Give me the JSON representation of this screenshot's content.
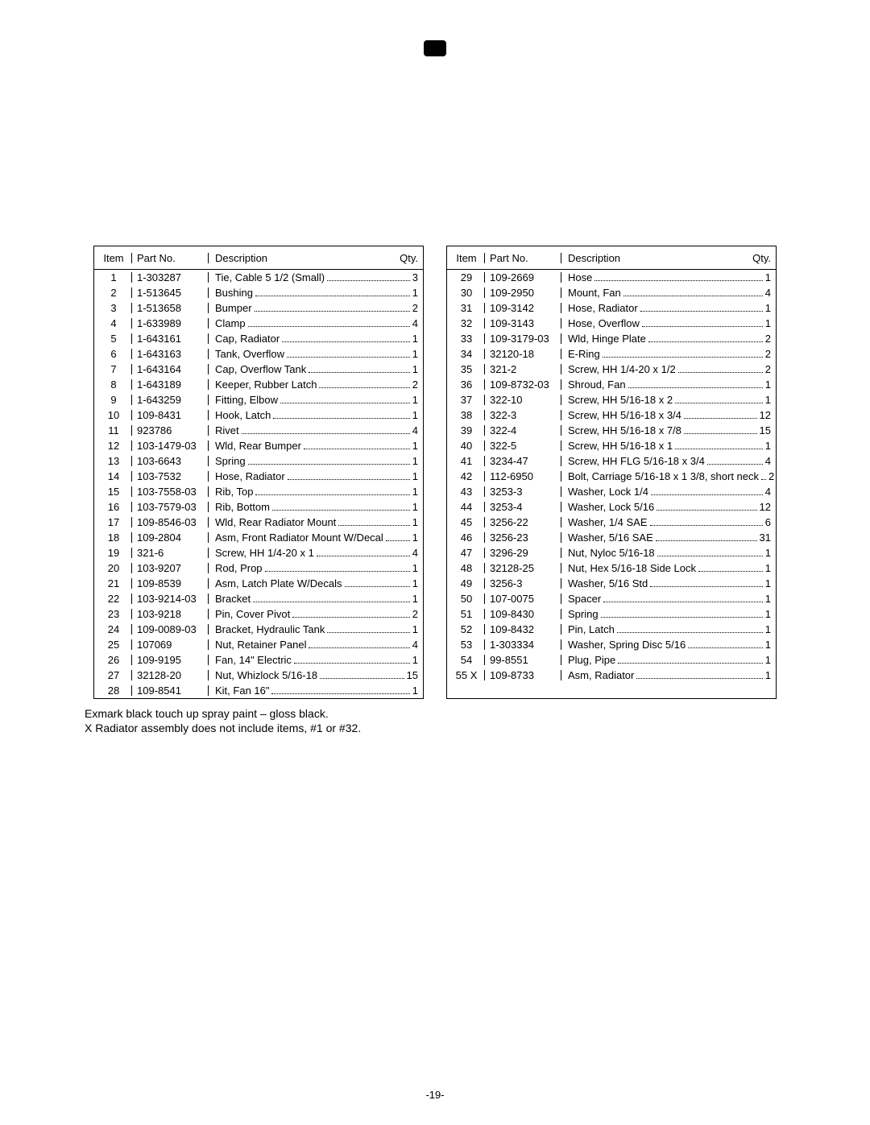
{
  "page_number_label": "-19-",
  "header_glyph": "",
  "columns": {
    "item": "Item",
    "part": "Part No.",
    "desc": "Description",
    "qty": "Qty."
  },
  "notes": [
    "Exmark black touch up spray paint – gloss black.",
    "X  Radiator assembly does not include items, #1 or #32."
  ],
  "left": [
    {
      "item": "1",
      "part": "1-303287",
      "desc": "Tie, Cable 5 1/2 (Small)",
      "qty": "3"
    },
    {
      "item": "2",
      "part": "1-513645",
      "desc": "Bushing",
      "qty": "1"
    },
    {
      "item": "3",
      "part": "1-513658",
      "desc": "Bumper",
      "qty": "2"
    },
    {
      "item": "4",
      "part": "1-633989",
      "desc": "Clamp",
      "qty": "4"
    },
    {
      "item": "5",
      "part": "1-643161",
      "desc": "Cap, Radiator",
      "qty": "1"
    },
    {
      "item": "6",
      "part": "1-643163",
      "desc": "Tank, Overflow",
      "qty": "1"
    },
    {
      "item": "7",
      "part": "1-643164",
      "desc": "Cap, Overflow Tank",
      "qty": "1"
    },
    {
      "item": "8",
      "part": "1-643189",
      "desc": "Keeper, Rubber Latch",
      "qty": "2"
    },
    {
      "item": "9",
      "part": "1-643259",
      "desc": "Fitting, Elbow",
      "qty": "1"
    },
    {
      "item": "10",
      "part": "109-8431",
      "desc": "Hook, Latch",
      "qty": "1"
    },
    {
      "item": "11",
      "part": "923786",
      "desc": "Rivet",
      "qty": "4"
    },
    {
      "item": "12",
      "part": "103-1479-03",
      "desc": "Wld, Rear Bumper",
      "qty": "1"
    },
    {
      "item": "13",
      "part": "103-6643",
      "desc": "Spring",
      "qty": "1"
    },
    {
      "item": "14",
      "part": "103-7532",
      "desc": "Hose, Radiator",
      "qty": "1"
    },
    {
      "item": "15",
      "part": "103-7558-03",
      "desc": "Rib, Top",
      "qty": "1"
    },
    {
      "item": "16",
      "part": "103-7579-03",
      "desc": "Rib, Bottom",
      "qty": "1"
    },
    {
      "item": "17",
      "part": "109-8546-03",
      "desc": "Wld, Rear Radiator Mount",
      "qty": "1"
    },
    {
      "item": "18",
      "part": "109-2804",
      "desc": "Asm, Front Radiator Mount W/Decal",
      "qty": "1"
    },
    {
      "item": "19",
      "part": "321-6",
      "desc": "Screw, HH 1/4-20 x 1",
      "qty": "4"
    },
    {
      "item": "20",
      "part": "103-9207",
      "desc": "Rod, Prop",
      "qty": "1"
    },
    {
      "item": "21",
      "part": "109-8539",
      "desc": "Asm, Latch Plate W/Decals",
      "qty": "1"
    },
    {
      "item": "22",
      "part": "103-9214-03",
      "desc": "Bracket",
      "qty": "1"
    },
    {
      "item": "23",
      "part": "103-9218",
      "desc": "Pin, Cover Pivot",
      "qty": "2"
    },
    {
      "item": "24",
      "part": "109-0089-03",
      "desc": "Bracket, Hydraulic Tank",
      "qty": "1"
    },
    {
      "item": "25",
      "part": "107069",
      "desc": "Nut, Retainer Panel",
      "qty": "4"
    },
    {
      "item": "26",
      "part": "109-9195",
      "desc": "Fan, 14\" Electric",
      "qty": "1"
    },
    {
      "item": "27",
      "part": "32128-20",
      "desc": "Nut, Whizlock 5/16-18",
      "qty": "15"
    },
    {
      "item": "28",
      "part": "109-8541",
      "desc": "Kit, Fan 16\"",
      "qty": "1"
    }
  ],
  "right": [
    {
      "item": "29",
      "part": "109-2669",
      "desc": "Hose",
      "qty": "1"
    },
    {
      "item": "30",
      "part": "109-2950",
      "desc": "Mount, Fan",
      "qty": "4"
    },
    {
      "item": "31",
      "part": "109-3142",
      "desc": "Hose, Radiator",
      "qty": "1"
    },
    {
      "item": "32",
      "part": "109-3143",
      "desc": "Hose, Overflow",
      "qty": "1"
    },
    {
      "item": "33",
      "part": "109-3179-03",
      "desc": "Wld, Hinge Plate",
      "qty": "2"
    },
    {
      "item": "34",
      "part": "32120-18",
      "desc": "E-Ring",
      "qty": "2"
    },
    {
      "item": "35",
      "part": "321-2",
      "desc": "Screw, HH 1/4-20 x 1/2",
      "qty": "2"
    },
    {
      "item": "36",
      "part": "109-8732-03",
      "desc": "Shroud, Fan",
      "qty": "1"
    },
    {
      "item": "37",
      "part": "322-10",
      "desc": "Screw, HH 5/16-18 x 2",
      "qty": "1"
    },
    {
      "item": "38",
      "part": "322-3",
      "desc": "Screw, HH 5/16-18 x 3/4",
      "qty": "12"
    },
    {
      "item": "39",
      "part": "322-4",
      "desc": "Screw, HH 5/16-18 x 7/8",
      "qty": "15"
    },
    {
      "item": "40",
      "part": "322-5",
      "desc": "Screw, HH 5/16-18 x 1",
      "qty": "1"
    },
    {
      "item": "41",
      "part": "3234-47",
      "desc": "Screw, HH FLG 5/16-18 x 3/4",
      "qty": "4"
    },
    {
      "item": "42",
      "part": "112-6950",
      "desc": "Bolt, Carriage 5/16-18 x 1 3/8, short neck",
      "qty": "2"
    },
    {
      "item": "43",
      "part": "3253-3",
      "desc": "Washer, Lock 1/4",
      "qty": "4"
    },
    {
      "item": "44",
      "part": "3253-4",
      "desc": "Washer, Lock 5/16",
      "qty": "12"
    },
    {
      "item": "45",
      "part": "3256-22",
      "desc": "Washer, 1/4 SAE",
      "qty": "6"
    },
    {
      "item": "46",
      "part": "3256-23",
      "desc": "Washer, 5/16 SAE",
      "qty": "31"
    },
    {
      "item": "47",
      "part": "3296-29",
      "desc": "Nut, Nyloc 5/16-18",
      "qty": "1"
    },
    {
      "item": "48",
      "part": "32128-25",
      "desc": "Nut, Hex 5/16-18 Side Lock",
      "qty": "1"
    },
    {
      "item": "49",
      "part": "3256-3",
      "desc": "Washer, 5/16 Std",
      "qty": "1"
    },
    {
      "item": "50",
      "part": "107-0075",
      "desc": "Spacer",
      "qty": "1"
    },
    {
      "item": "51",
      "part": "109-8430",
      "desc": "Spring",
      "qty": "1"
    },
    {
      "item": "52",
      "part": "109-8432",
      "desc": "Pin, Latch",
      "qty": "1"
    },
    {
      "item": "53",
      "part": "1-303334",
      "desc": "Washer, Spring Disc 5/16",
      "qty": "1"
    },
    {
      "item": "54",
      "part": "99-8551",
      "desc": "Plug, Pipe",
      "qty": "1"
    },
    {
      "item": "55 X",
      "part": "109-8733",
      "desc": "Asm, Radiator",
      "qty": "1"
    }
  ]
}
